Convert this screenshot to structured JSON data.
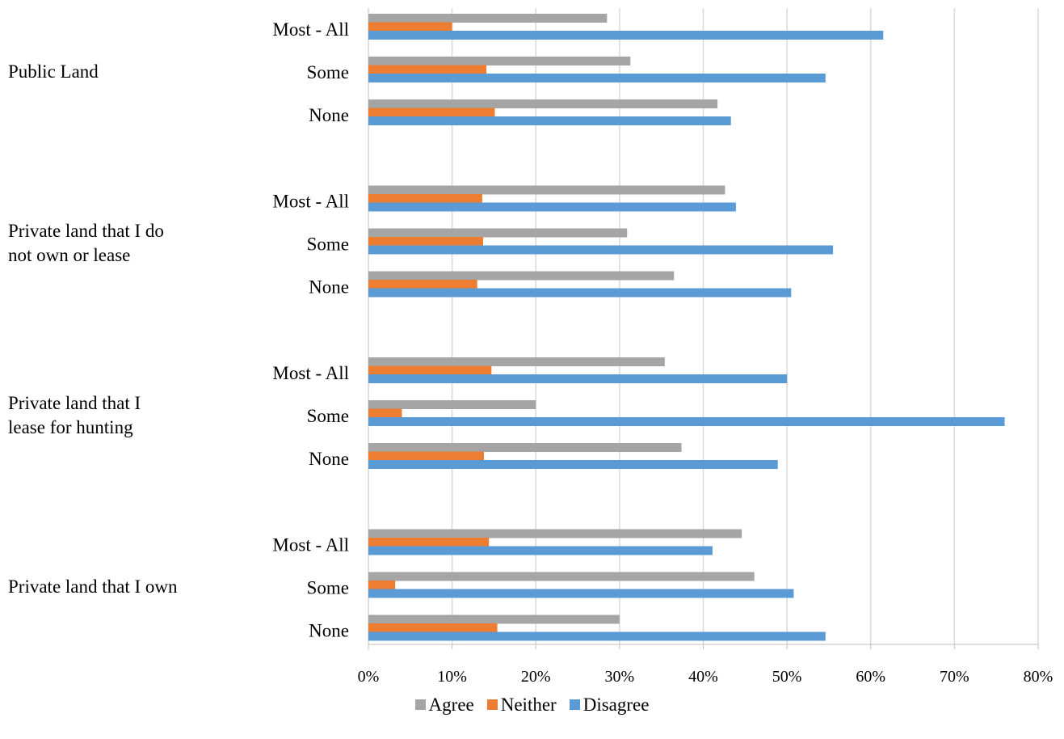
{
  "chart_data": {
    "type": "bar",
    "orientation": "horizontal",
    "groups": [
      {
        "label": "Public Land",
        "categories": [
          "Most - All",
          "Some",
          "None"
        ]
      },
      {
        "label": "Private land that I do\n not own or lease",
        "categories": [
          "Most - All",
          "Some",
          "None"
        ]
      },
      {
        "label": "Private land that I\nlease for hunting",
        "categories": [
          "Most - All",
          "Some",
          "None"
        ]
      },
      {
        "label": "Private land that I own",
        "categories": [
          "Most - All",
          "Some",
          "None"
        ]
      }
    ],
    "series": [
      {
        "name": "Agree",
        "color": "#a5a5a5",
        "values": [
          28.5,
          31.3,
          41.7,
          42.6,
          30.9,
          36.5,
          35.4,
          20.0,
          37.4,
          44.6,
          46.1,
          30.0
        ]
      },
      {
        "name": "Neither",
        "color": "#ed7d31",
        "values": [
          10.0,
          14.1,
          15.1,
          13.6,
          13.7,
          13.0,
          14.7,
          4.0,
          13.8,
          14.4,
          3.2,
          15.4
        ]
      },
      {
        "name": "Disagree",
        "color": "#5b9bd5",
        "values": [
          61.5,
          54.6,
          43.3,
          43.9,
          55.5,
          50.5,
          50.0,
          76.0,
          48.9,
          41.1,
          50.8,
          54.6
        ]
      }
    ],
    "xlim": [
      0,
      80
    ],
    "x_ticks": [
      "0%",
      "10%",
      "20%",
      "30%",
      "40%",
      "50%",
      "60%",
      "70%",
      "80%"
    ],
    "grid": true,
    "legend_position": "bottom"
  }
}
